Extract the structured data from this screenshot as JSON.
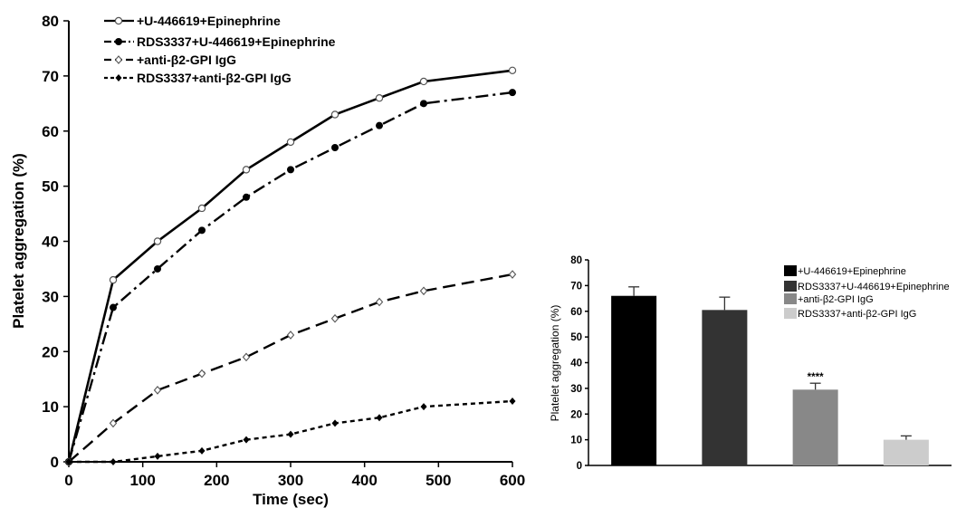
{
  "chart_data": [
    {
      "type": "line",
      "title": "",
      "xlabel": "Time (sec)",
      "ylabel": "Platelet aggregation (%)",
      "xlim": [
        0,
        600
      ],
      "ylim": [
        0,
        80
      ],
      "xticks": [
        "0",
        "100",
        "200",
        "300",
        "400",
        "500",
        "600"
      ],
      "yticks": [
        "0",
        "10",
        "20",
        "30",
        "40",
        "50",
        "60",
        "70",
        "80"
      ],
      "legend_position": "top-left",
      "grid": false,
      "series": [
        {
          "name": "+U-446619+Epinephrine",
          "marker": "open-circle",
          "line": "solid",
          "x": [
            0,
            60,
            120,
            180,
            240,
            300,
            360,
            420,
            480,
            600
          ],
          "y": [
            0,
            33,
            40,
            46,
            53,
            58,
            63,
            66,
            69,
            71
          ]
        },
        {
          "name": "RDS3337+U-446619+Epinephrine",
          "marker": "filled-circle",
          "line": "dash-dot",
          "x": [
            0,
            60,
            120,
            180,
            240,
            300,
            360,
            420,
            480,
            600
          ],
          "y": [
            0,
            28,
            35,
            42,
            48,
            53,
            57,
            61,
            65,
            67
          ]
        },
        {
          "name": "+anti-β2-GPI  IgG",
          "marker": "open-diamond",
          "line": "long-dash",
          "x": [
            0,
            60,
            120,
            180,
            240,
            300,
            360,
            420,
            480,
            600
          ],
          "y": [
            0,
            7,
            13,
            16,
            19,
            23,
            26,
            29,
            31,
            34
          ]
        },
        {
          "name": "RDS3337+anti-β2-GPI  IgG",
          "marker": "filled-diamond",
          "line": "short-dash",
          "x": [
            0,
            60,
            120,
            180,
            240,
            300,
            360,
            420,
            480,
            600
          ],
          "y": [
            0,
            0,
            1,
            2,
            4,
            5,
            7,
            8,
            10,
            11
          ]
        }
      ]
    },
    {
      "type": "bar",
      "title": "",
      "xlabel": "",
      "ylabel": "Platelet aggregation (%)",
      "ylim": [
        0,
        80
      ],
      "yticks": [
        "0",
        "10",
        "20",
        "30",
        "40",
        "50",
        "60",
        "70",
        "80"
      ],
      "legend_position": "top-right",
      "grid": false,
      "categories": [
        "+U-446619+Epinephrine",
        "RDS3337+U-446619+Epinephrine",
        "+anti-β2-GPI IgG",
        "RDS3337+anti-β2-GPI IgG"
      ],
      "values": [
        66,
        60.5,
        29.5,
        10
      ],
      "errors": [
        3.5,
        5,
        2.5,
        1.5
      ],
      "colors": [
        "#000000",
        "#333333",
        "#888888",
        "#cccccc"
      ],
      "annotations": [
        {
          "bar": 2,
          "text": "****"
        }
      ]
    }
  ]
}
